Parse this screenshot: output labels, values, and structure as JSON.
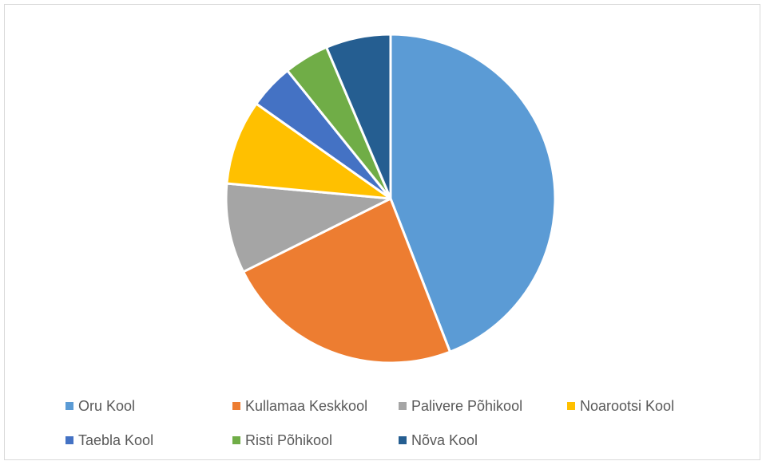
{
  "chart_data": {
    "type": "pie",
    "title": "",
    "categories": [
      "Oru Kool",
      "Kullamaa Keskkool",
      "Palivere Põhikool",
      "Noarootsi Kool",
      "Taebla Kool",
      "Risti Põhikool",
      "Nõva Kool"
    ],
    "values": [
      45,
      24,
      9,
      8.5,
      4.5,
      4.5,
      6.5
    ],
    "colors": [
      "#5B9BD5",
      "#ED7D31",
      "#A5A5A5",
      "#FFC000",
      "#4472C4",
      "#70AD47",
      "#255E91"
    ],
    "legend": "bottom"
  }
}
